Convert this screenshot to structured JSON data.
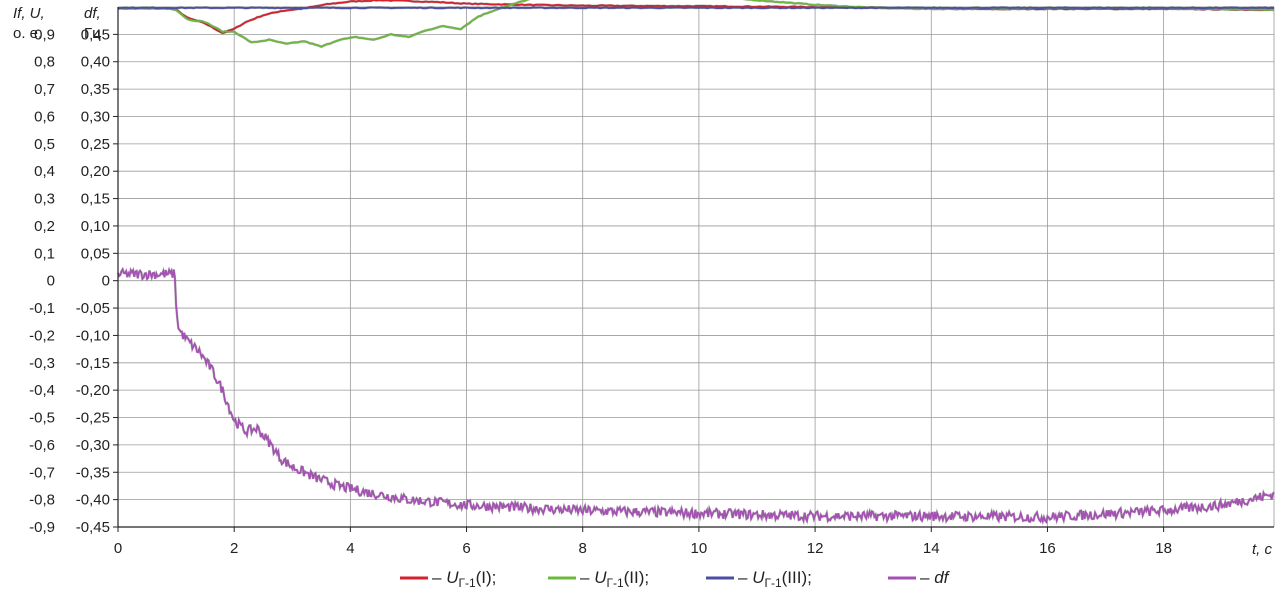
{
  "chart_data": {
    "type": "line",
    "title": "",
    "xlabel": "t, c",
    "x_ticks": [
      0,
      2,
      4,
      6,
      8,
      10,
      12,
      14,
      16,
      18
    ],
    "xlim": [
      0,
      19.9
    ],
    "left_axis": {
      "label_line1": "If, U,",
      "label_line2": "о. е.",
      "ticks": [
        "0,9",
        "0,8",
        "0,7",
        "0,6",
        "0,5",
        "0,4",
        "0,3",
        "0,2",
        "0,1",
        "0",
        "-0,1",
        "-0,2",
        "-0,3",
        "-0,4",
        "-0,5",
        "-0,6",
        "-0,7",
        "-0,8",
        "-0,9"
      ],
      "ylim": [
        -0.9,
        1.0
      ]
    },
    "right_axis": {
      "label_line1": "df,",
      "label_line2": "Гц",
      "ticks": [
        "0,45",
        "0,40",
        "0,35",
        "0,30",
        "0,25",
        "0,20",
        "0,15",
        "0,10",
        "0,05",
        "0",
        "-0,05",
        "-0,10",
        "-0,15",
        "-0,20",
        "-0,25",
        "-0,30",
        "-0,35",
        "-0,40",
        "-0,45"
      ],
      "ylim": [
        -0.45,
        0.5
      ]
    },
    "grid": true,
    "legend_position": "bottom",
    "series": [
      {
        "legend_dash": "–",
        "name_main": "U",
        "name_sub": "Г-1",
        "name_suffix": "(I);",
        "color": "#d4232f",
        "axis": "left",
        "x": [
          0,
          0.9,
          1.0,
          1.2,
          1.5,
          1.8,
          2.0,
          2.2,
          2.5,
          2.8,
          3.2,
          3.6,
          4.0,
          4.5,
          5.0,
          5.5,
          6.0,
          7.0,
          8.0,
          9.0,
          10.0,
          12.0,
          14.0,
          15.0,
          16.0,
          18.0,
          19.9
        ],
        "y": [
          0.995,
          0.995,
          0.99,
          0.96,
          0.94,
          0.905,
          0.92,
          0.945,
          0.97,
          0.985,
          0.995,
          1.01,
          1.02,
          1.025,
          1.022,
          1.018,
          1.012,
          1.008,
          1.005,
          1.004,
          1.003,
          1.0,
          0.995,
          0.992,
          0.993,
          0.993,
          0.99
        ]
      },
      {
        "legend_dash": "–",
        "name_main": "U",
        "name_sub": "Г-1",
        "name_suffix": "(II);",
        "color": "#6cb83c",
        "axis": "left",
        "x": [
          0,
          0.9,
          1.0,
          1.2,
          1.5,
          1.8,
          2.0,
          2.3,
          2.6,
          2.9,
          3.2,
          3.5,
          3.8,
          4.1,
          4.4,
          4.7,
          5.0,
          5.3,
          5.6,
          5.9,
          6.2,
          6.5,
          6.8,
          7.1,
          7.5,
          8.0,
          9.0,
          10.0,
          11.0,
          12.0,
          13.0,
          14.0,
          16.0,
          18.0,
          19.9
        ],
        "y": [
          0.995,
          0.995,
          0.99,
          0.955,
          0.945,
          0.91,
          0.91,
          0.87,
          0.88,
          0.865,
          0.875,
          0.855,
          0.88,
          0.89,
          0.88,
          0.9,
          0.89,
          0.915,
          0.93,
          0.92,
          0.965,
          0.99,
          1.01,
          1.03,
          1.04,
          1.05,
          1.048,
          1.04,
          1.025,
          1.008,
          0.997,
          0.993,
          0.995,
          0.995,
          0.99
        ]
      },
      {
        "legend_dash": "–",
        "name_main": "U",
        "name_sub": "Г-1",
        "name_suffix": "(III);",
        "color": "#4a4fa6",
        "axis": "left",
        "x": [
          0,
          2.0,
          4.0,
          6.0,
          8.0,
          10.0,
          12.0,
          14.0,
          16.0,
          18.0,
          19.9
        ],
        "y": [
          0.997,
          0.997,
          0.997,
          0.997,
          0.997,
          0.997,
          0.997,
          0.997,
          0.997,
          0.997,
          0.997
        ]
      },
      {
        "legend_dash": "–",
        "name_main": "df",
        "name_sub": "",
        "name_suffix": "",
        "color": "#a64fb5",
        "axis": "right",
        "x": [
          0,
          0.5,
          0.99,
          1.0,
          1.05,
          1.2,
          1.4,
          1.6,
          1.8,
          2.0,
          2.2,
          2.4,
          2.6,
          2.8,
          3.0,
          3.4,
          3.8,
          4.2,
          5.0,
          6.0,
          8.0,
          10.0,
          12.0,
          14.0,
          16.0,
          18.0,
          19.0,
          19.9
        ],
        "y": [
          0.012,
          0.012,
          0.012,
          -0.05,
          -0.09,
          -0.11,
          -0.13,
          -0.16,
          -0.2,
          -0.255,
          -0.275,
          -0.27,
          -0.295,
          -0.325,
          -0.34,
          -0.36,
          -0.375,
          -0.385,
          -0.4,
          -0.41,
          -0.42,
          -0.425,
          -0.43,
          -0.43,
          -0.432,
          -0.42,
          -0.41,
          -0.39
        ]
      }
    ]
  }
}
